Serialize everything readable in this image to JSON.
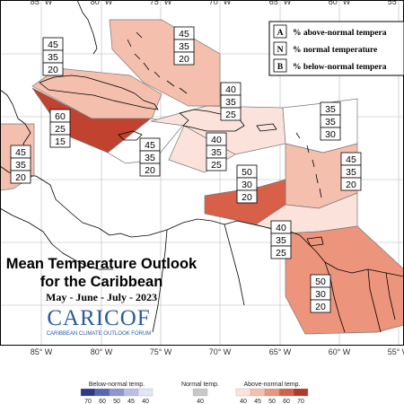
{
  "title": {
    "line1": "Mean Temperature Outlook",
    "line2": "for the Caribbean",
    "period": "May - June - July - 2023"
  },
  "logo": {
    "wordmark": "CARICOF",
    "tagline": "CARIBBEAN CLIMATE OUTLOOK FORUM",
    "color": "#2a5aa0"
  },
  "legend_box": {
    "rows": [
      {
        "key": "A",
        "text": "% above-normal tempera"
      },
      {
        "key": "N",
        "text": "% normal temperature"
      },
      {
        "key": "B",
        "text": "% below-normal tempera"
      }
    ]
  },
  "longitude_labels": [
    "85° W",
    "80° W",
    "75° W",
    "70° W",
    "65° W",
    "60° W",
    "55° W"
  ],
  "colorbar": {
    "groups": [
      {
        "label": "Below-normal temp.",
        "ticks": [
          "70",
          "60",
          "50",
          "45",
          "40"
        ],
        "colors": [
          "#2d3a8c",
          "#5766b5",
          "#8d96d0",
          "#b9bfe5",
          "#e2e5f6"
        ]
      },
      {
        "label": "Normal temp.",
        "ticks": [
          "40"
        ],
        "colors": [
          "#c8c8c8"
        ]
      },
      {
        "label": "Above-normal temp.",
        "ticks": [
          "40",
          "45",
          "50",
          "60",
          "70"
        ],
        "colors": [
          "#fbe3dc",
          "#f5bfae",
          "#ec957c",
          "#d85f48",
          "#b23a2a"
        ]
      }
    ]
  },
  "regions": [
    {
      "id": "central-america",
      "fill": "#f5bfae",
      "probabilities": [
        "45",
        "35",
        "20"
      ]
    },
    {
      "id": "cuba-west",
      "fill": "#f5bfae",
      "probabilities": [
        "45",
        "35",
        "20"
      ]
    },
    {
      "id": "cayman-jamaica",
      "fill": "#c0422f",
      "probabilities": [
        "60",
        "25",
        "15"
      ]
    },
    {
      "id": "jamaica-south",
      "fill": "#ffffff",
      "probabilities": [
        "45",
        "35",
        "20"
      ]
    },
    {
      "id": "bahamas",
      "fill": "#f5bfae",
      "probabilities": [
        "45",
        "35",
        "20"
      ]
    },
    {
      "id": "hispaniola",
      "fill": "#fbe3dc",
      "probabilities": [
        "40",
        "35",
        "25"
      ]
    },
    {
      "id": "hispaniola-south",
      "fill": "#fbe3dc",
      "probabilities": [
        "40",
        "35",
        "25"
      ]
    },
    {
      "id": "virgin-islands",
      "fill": "#ffffff",
      "probabilities": [
        "35",
        "35",
        "30"
      ]
    },
    {
      "id": "lesser-antilles",
      "fill": "#f5bfae",
      "probabilities": [
        "45",
        "35",
        "20"
      ]
    },
    {
      "id": "abc-islands",
      "fill": "#d85f48",
      "probabilities": [
        "50",
        "30",
        "20"
      ]
    },
    {
      "id": "trinidad",
      "fill": "#fbe3dc",
      "probabilities": [
        "40",
        "35",
        "25"
      ]
    },
    {
      "id": "guianas",
      "fill": "#ec957c",
      "probabilities": [
        "50",
        "30",
        "20"
      ]
    }
  ]
}
